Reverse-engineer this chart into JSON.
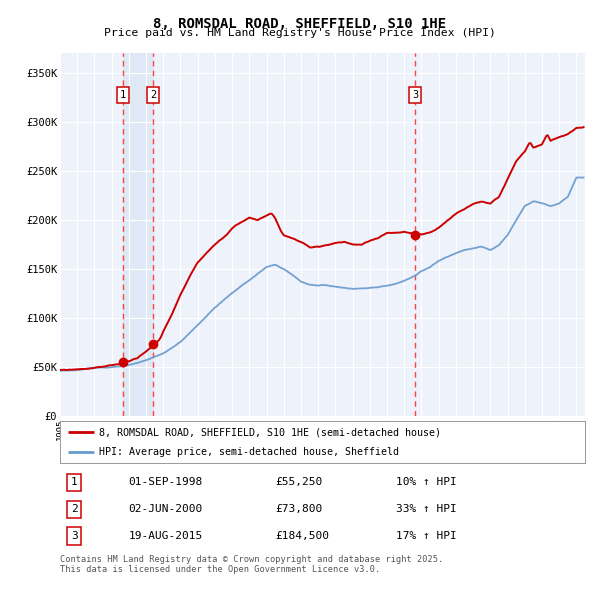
{
  "title": "8, ROMSDAL ROAD, SHEFFIELD, S10 1HE",
  "subtitle": "Price paid vs. HM Land Registry's House Price Index (HPI)",
  "xlim_start": 1995.0,
  "xlim_end": 2025.5,
  "ylim": [
    0,
    370000
  ],
  "yticks": [
    0,
    50000,
    100000,
    150000,
    200000,
    250000,
    300000,
    350000
  ],
  "ytick_labels": [
    "£0",
    "£50K",
    "£100K",
    "£150K",
    "£200K",
    "£250K",
    "£300K",
    "£350K"
  ],
  "sale_dates": [
    1998.67,
    2000.42,
    2015.63
  ],
  "sale_prices": [
    55250,
    73800,
    184500
  ],
  "sale_labels": [
    "1",
    "2",
    "3"
  ],
  "legend_red": "8, ROMSDAL ROAD, SHEFFIELD, S10 1HE (semi-detached house)",
  "legend_blue": "HPI: Average price, semi-detached house, Sheffield",
  "table_rows": [
    [
      "1",
      "01-SEP-1998",
      "£55,250",
      "10% ↑ HPI"
    ],
    [
      "2",
      "02-JUN-2000",
      "£73,800",
      "33% ↑ HPI"
    ],
    [
      "3",
      "19-AUG-2015",
      "£184,500",
      "17% ↑ HPI"
    ]
  ],
  "footnote": "Contains HM Land Registry data © Crown copyright and database right 2025.\nThis data is licensed under the Open Government Licence v3.0.",
  "red_color": "#cc0000",
  "blue_color": "#6699cc",
  "bg_color": "#eef2fa",
  "grid_color": "#ffffff",
  "vline_color": "#ff4444",
  "highlight_color": "#dde8f5",
  "blue_keypoints_x": [
    1995.0,
    1996.0,
    1997.0,
    1998.0,
    1999.0,
    2000.0,
    2001.0,
    2002.0,
    2003.0,
    2004.0,
    2005.0,
    2006.0,
    2007.0,
    2007.5,
    2008.0,
    2008.5,
    2009.0,
    2009.5,
    2010.0,
    2010.5,
    2011.0,
    2011.5,
    2012.0,
    2012.5,
    2013.0,
    2013.5,
    2014.0,
    2014.5,
    2015.0,
    2015.5,
    2016.0,
    2016.5,
    2017.0,
    2017.5,
    2018.0,
    2018.5,
    2019.0,
    2019.5,
    2020.0,
    2020.5,
    2021.0,
    2021.5,
    2022.0,
    2022.5,
    2023.0,
    2023.5,
    2024.0,
    2024.5,
    2025.0
  ],
  "blue_keypoints_y": [
    46000,
    47000,
    48500,
    50000,
    52000,
    56000,
    63000,
    75000,
    92000,
    110000,
    125000,
    138000,
    151000,
    153000,
    149000,
    143000,
    136000,
    133000,
    132000,
    132500,
    131000,
    130500,
    129000,
    129500,
    130000,
    131000,
    133000,
    135000,
    138000,
    142000,
    148000,
    152000,
    158000,
    162000,
    166000,
    170000,
    172000,
    174000,
    170000,
    175000,
    185000,
    200000,
    215000,
    220000,
    218000,
    215000,
    218000,
    225000,
    245000
  ],
  "red_keypoints_x": [
    1995.0,
    1996.0,
    1997.0,
    1998.0,
    1998.67,
    1999.0,
    1999.5,
    2000.0,
    2000.42,
    2000.8,
    2001.0,
    2001.5,
    2002.0,
    2002.5,
    2003.0,
    2003.5,
    2004.0,
    2004.5,
    2005.0,
    2005.5,
    2006.0,
    2006.5,
    2007.0,
    2007.3,
    2007.5,
    2007.8,
    2008.0,
    2008.5,
    2009.0,
    2009.5,
    2010.0,
    2010.5,
    2011.0,
    2011.5,
    2012.0,
    2012.5,
    2013.0,
    2013.5,
    2014.0,
    2014.5,
    2015.0,
    2015.5,
    2015.63,
    2016.0,
    2016.5,
    2017.0,
    2017.5,
    2018.0,
    2018.5,
    2019.0,
    2019.5,
    2020.0,
    2020.5,
    2021.0,
    2021.5,
    2022.0,
    2022.3,
    2022.5,
    2023.0,
    2023.3,
    2023.5,
    2024.0,
    2024.5,
    2025.0
  ],
  "red_keypoints_y": [
    47000,
    48000,
    50000,
    53000,
    55250,
    57000,
    61000,
    68000,
    73800,
    80000,
    88000,
    105000,
    125000,
    143000,
    158000,
    167000,
    175000,
    183000,
    192000,
    198000,
    203000,
    200000,
    205000,
    207000,
    202000,
    190000,
    185000,
    182000,
    178000,
    172000,
    173000,
    175000,
    177000,
    178000,
    175000,
    174000,
    178000,
    181000,
    185000,
    185500,
    186000,
    184000,
    184500,
    183000,
    185000,
    190000,
    198000,
    205000,
    210000,
    215000,
    218000,
    216000,
    222000,
    240000,
    258000,
    268000,
    278000,
    272000,
    275000,
    285000,
    278000,
    282000,
    285000,
    291000
  ]
}
